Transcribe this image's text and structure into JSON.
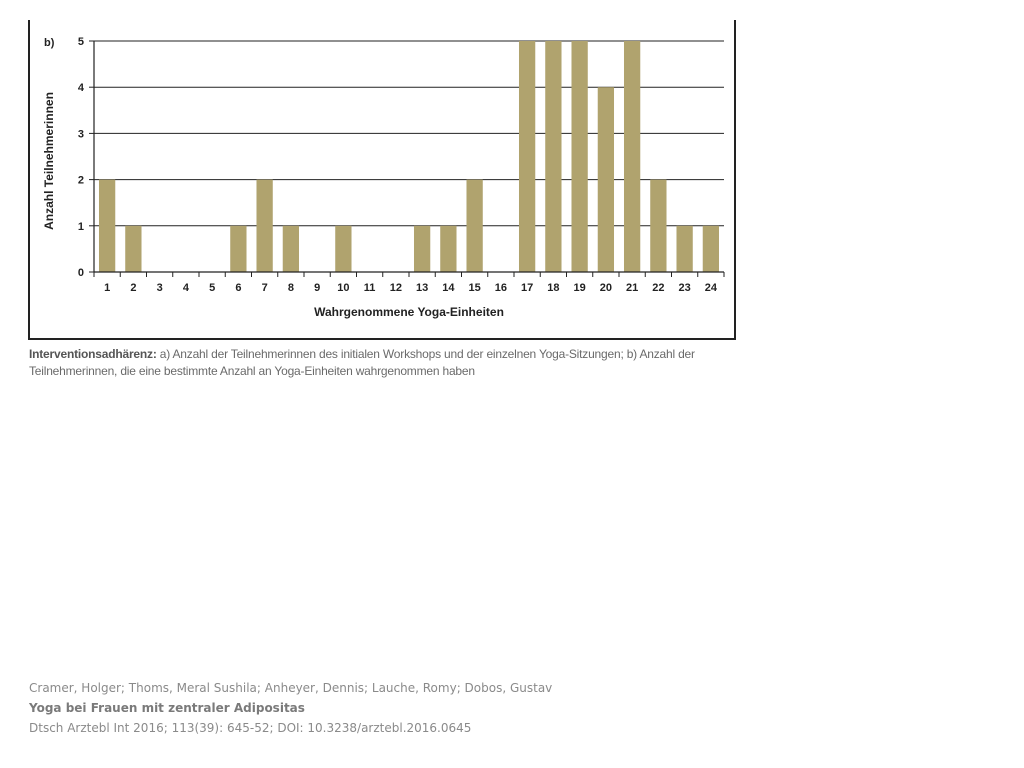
{
  "chart_data": {
    "type": "bar",
    "panel_label": "b)",
    "categories": [
      "1",
      "2",
      "3",
      "4",
      "5",
      "6",
      "7",
      "8",
      "9",
      "10",
      "11",
      "12",
      "13",
      "14",
      "15",
      "16",
      "17",
      "18",
      "19",
      "20",
      "21",
      "22",
      "23",
      "24"
    ],
    "values": [
      2,
      1,
      0,
      0,
      0,
      1,
      2,
      1,
      0,
      1,
      0,
      0,
      1,
      1,
      2,
      0,
      5,
      5,
      5,
      4,
      5,
      2,
      1,
      1
    ],
    "xlabel": "Wahrgenommene Yoga-Einheiten",
    "ylabel": "Anzahl Teilnehmerinnen",
    "ylim": [
      0,
      5
    ],
    "yticks": [
      0,
      1,
      2,
      3,
      4,
      5
    ],
    "grid": true,
    "bar_color": "#b0a36e",
    "grid_color": "#222222"
  },
  "caption": {
    "lead": "Interventionsadhärenz:",
    "text": " a) Anzahl der Teilnehmerinnen des initialen Workshops und der einzelnen Yoga-Sitzungen; b) Anzahl der Teilnehmerinnen, die eine bestimmte Anzahl an Yoga-Einheiten wahrgenommen haben"
  },
  "citation": {
    "authors": "Cramer, Holger; Thoms, Meral Sushila; Anheyer, Dennis; Lauche, Romy; Dobos, Gustav",
    "title": "Yoga bei Frauen mit zentraler Adipositas",
    "source": "Dtsch Arztebl Int 2016; 113(39): 645-52; DOI: 10.3238/arztebl.2016.0645"
  }
}
